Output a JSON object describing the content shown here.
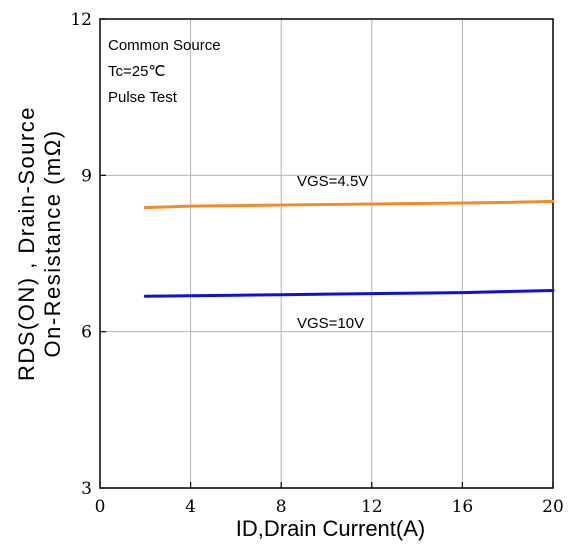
{
  "chart_data": {
    "type": "line",
    "title": "",
    "xlabel": "ID,Drain Current(A)",
    "ylabel_line1": "RDS(ON) , Drain-Source",
    "ylabel_line2": "On-Resistance (mΩ)",
    "xlim": [
      0,
      20
    ],
    "ylim": [
      3,
      12
    ],
    "x_ticks": [
      0,
      4,
      8,
      12,
      16,
      20
    ],
    "y_ticks": [
      3,
      6,
      9,
      12
    ],
    "x_tick_labels": [
      "0",
      "4",
      "8",
      "12",
      "16",
      "20"
    ],
    "y_tick_labels": [
      "3",
      "6",
      "9",
      "12"
    ],
    "grid": true,
    "annotations": [
      "Common Source",
      "Tc=25℃",
      "Pulse Test"
    ],
    "series": [
      {
        "name": "VGS=4.5V",
        "color": "#F28C28",
        "x": [
          2,
          4,
          6,
          8,
          10,
          12,
          14,
          16,
          18,
          20
        ],
        "y": [
          8.38,
          8.41,
          8.42,
          8.43,
          8.44,
          8.45,
          8.46,
          8.47,
          8.48,
          8.5
        ]
      },
      {
        "name": "VGS=10V",
        "color": "#1010D8",
        "x": [
          2,
          4,
          6,
          8,
          10,
          12,
          14,
          16,
          18,
          20
        ],
        "y": [
          6.68,
          6.69,
          6.7,
          6.71,
          6.72,
          6.73,
          6.74,
          6.75,
          6.77,
          6.79
        ]
      }
    ]
  }
}
